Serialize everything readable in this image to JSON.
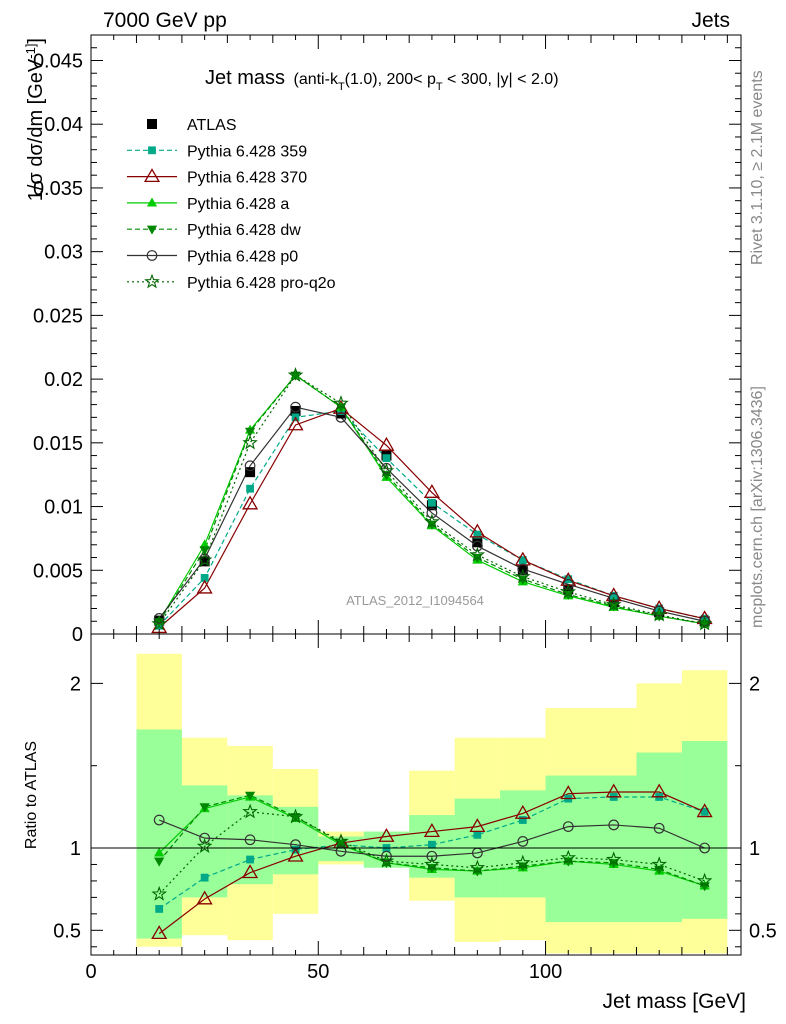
{
  "header": {
    "left": "7000 GeV pp",
    "right": "Jets"
  },
  "side_labels": {
    "rivet": "Rivet 3.1.10, ≥ 2.1M events",
    "mcplots": "mcplots.cern.ch [arXiv:1306.3436]"
  },
  "title": {
    "main": "Jet mass",
    "detail": "(anti-k_T(1.0), 200< p_T < 300, |y| < 2.0)"
  },
  "watermark": "ATLAS_2012_I1094564",
  "chart_data": [
    {
      "type": "line",
      "panel": "main",
      "ylabel": "1/σ dσ/dm [GeV^-1]",
      "xlim": [
        0,
        143
      ],
      "ylim": [
        0,
        0.047
      ],
      "yticks": [
        0,
        0.005,
        0.01,
        0.015,
        0.02,
        0.025,
        0.03,
        0.035,
        0.04,
        0.045
      ],
      "ytick_labels": [
        "0",
        "0.005",
        "0.01",
        "0.015",
        "0.02",
        "0.025",
        "0.03",
        "0.035",
        "0.04",
        "0.045"
      ],
      "x": [
        15,
        25,
        35,
        45,
        55,
        65,
        75,
        85,
        95,
        105,
        115,
        125,
        135
      ],
      "legend_position": "top-left",
      "series": [
        {
          "name": "ATLAS",
          "color": "#000000",
          "marker": "square",
          "line": "none",
          "values": [
            0.00105,
            0.0057,
            0.0127,
            0.0175,
            0.0173,
            0.014,
            0.0101,
            0.0072,
            0.005,
            0.0035,
            0.0025,
            0.0017,
            0.001
          ]
        },
        {
          "name": "Pythia 6.428 359",
          "color": "#00aa88",
          "marker": "small-square",
          "line": "dashed",
          "values": [
            0.00065,
            0.0044,
            0.0114,
            0.017,
            0.0175,
            0.0138,
            0.0103,
            0.0078,
            0.0058,
            0.0043,
            0.003,
            0.002,
            0.0012
          ]
        },
        {
          "name": "Pythia 6.428 370",
          "color": "#880000",
          "marker": "open-triangle",
          "line": "solid",
          "values": [
            0.0005,
            0.0036,
            0.0102,
            0.0164,
            0.0177,
            0.0148,
            0.0111,
            0.008,
            0.0058,
            0.0042,
            0.003,
            0.002,
            0.0012
          ]
        },
        {
          "name": "Pythia 6.428 a",
          "color": "#00cc00",
          "marker": "triangle",
          "line": "solid",
          "values": [
            0.00102,
            0.007,
            0.016,
            0.0203,
            0.0178,
            0.0123,
            0.0085,
            0.0058,
            0.0041,
            0.003,
            0.0021,
            0.0014,
            0.0008
          ]
        },
        {
          "name": "Pythia 6.428 dw",
          "color": "#008800",
          "marker": "down-triangle",
          "line": "dashed",
          "values": [
            0.00095,
            0.0066,
            0.0159,
            0.0203,
            0.0178,
            0.0125,
            0.0086,
            0.006,
            0.0043,
            0.0031,
            0.0022,
            0.0014,
            0.0008
          ]
        },
        {
          "name": "Pythia 6.428 p0",
          "color": "#333333",
          "marker": "open-circle",
          "line": "solid",
          "values": [
            0.00122,
            0.0059,
            0.0132,
            0.0178,
            0.017,
            0.013,
            0.0095,
            0.0069,
            0.0051,
            0.0039,
            0.0028,
            0.0018,
            0.001
          ]
        },
        {
          "name": "Pythia 6.428 pro-q2o",
          "color": "#006600",
          "marker": "star",
          "line": "dotted",
          "values": [
            0.0008,
            0.0058,
            0.015,
            0.0203,
            0.0181,
            0.0128,
            0.0088,
            0.0062,
            0.0045,
            0.0033,
            0.0023,
            0.0015,
            0.0008
          ]
        }
      ]
    },
    {
      "type": "line",
      "panel": "ratio",
      "xlabel": "Jet mass [GeV]",
      "ylabel": "Ratio to ATLAS",
      "xlim": [
        0,
        143
      ],
      "ylim": [
        0.35,
        2.3
      ],
      "xticks": [
        0,
        50,
        100
      ],
      "xtick_labels": [
        "0",
        "50",
        "100"
      ],
      "yticks": [
        0.5,
        1,
        2
      ],
      "ytick_labels": [
        "0.5",
        "1",
        "2"
      ],
      "bins": [
        [
          10,
          20
        ],
        [
          20,
          30
        ],
        [
          30,
          40
        ],
        [
          40,
          50
        ],
        [
          50,
          60
        ],
        [
          60,
          70
        ],
        [
          70,
          80
        ],
        [
          80,
          90
        ],
        [
          90,
          100
        ],
        [
          100,
          110
        ],
        [
          110,
          120
        ],
        [
          120,
          130
        ],
        [
          130,
          140
        ]
      ],
      "band_outer": {
        "color": "#ffff99",
        "lo": [
          0.4,
          0.47,
          0.44,
          0.6,
          0.9,
          0.9,
          0.68,
          0.43,
          0.44,
          0.36,
          0.36,
          0.36,
          0.36
        ],
        "hi": [
          2.18,
          1.67,
          1.62,
          1.48,
          1.1,
          1.1,
          1.47,
          1.67,
          1.67,
          1.85,
          1.85,
          2.0,
          2.08
        ]
      },
      "band_inner": {
        "color": "#99ff99",
        "lo": [
          0.45,
          0.7,
          0.78,
          0.84,
          0.92,
          0.88,
          0.82,
          0.7,
          0.7,
          0.55,
          0.55,
          0.55,
          0.57
        ],
        "hi": [
          1.72,
          1.38,
          1.32,
          1.25,
          1.07,
          1.1,
          1.2,
          1.3,
          1.35,
          1.44,
          1.44,
          1.58,
          1.65
        ]
      },
      "x": [
        15,
        25,
        35,
        45,
        55,
        65,
        75,
        85,
        95,
        105,
        115,
        125,
        135
      ],
      "series": [
        {
          "name": "Pythia 6.428 359",
          "color": "#00aa88",
          "marker": "small-square",
          "line": "dashed",
          "values": [
            0.63,
            0.82,
            0.93,
            0.99,
            1.02,
            1.0,
            1.02,
            1.08,
            1.17,
            1.3,
            1.31,
            1.31,
            1.22
          ]
        },
        {
          "name": "Pythia 6.428 370",
          "color": "#880000",
          "marker": "open-triangle",
          "line": "solid",
          "values": [
            0.48,
            0.69,
            0.85,
            0.95,
            1.03,
            1.07,
            1.1,
            1.13,
            1.21,
            1.33,
            1.34,
            1.34,
            1.22
          ]
        },
        {
          "name": "Pythia 6.428 a",
          "color": "#00cc00",
          "marker": "triangle",
          "line": "solid",
          "values": [
            0.97,
            1.24,
            1.31,
            1.18,
            1.02,
            0.91,
            0.87,
            0.86,
            0.88,
            0.92,
            0.9,
            0.86,
            0.77
          ]
        },
        {
          "name": "Pythia 6.428 dw",
          "color": "#008800",
          "marker": "down-triangle",
          "line": "dashed",
          "values": [
            0.92,
            1.25,
            1.32,
            1.19,
            1.03,
            0.91,
            0.88,
            0.86,
            0.89,
            0.92,
            0.91,
            0.87,
            0.77
          ]
        },
        {
          "name": "Pythia 6.428 p0",
          "color": "#333333",
          "marker": "open-circle",
          "line": "solid",
          "values": [
            1.17,
            1.06,
            1.05,
            1.02,
            0.98,
            0.95,
            0.95,
            0.97,
            1.04,
            1.13,
            1.14,
            1.12,
            1.0
          ]
        },
        {
          "name": "Pythia 6.428 pro-q2o",
          "color": "#006600",
          "marker": "star",
          "line": "dotted",
          "values": [
            0.72,
            1.01,
            1.22,
            1.19,
            1.04,
            0.92,
            0.9,
            0.88,
            0.91,
            0.94,
            0.93,
            0.9,
            0.8
          ]
        }
      ]
    }
  ]
}
